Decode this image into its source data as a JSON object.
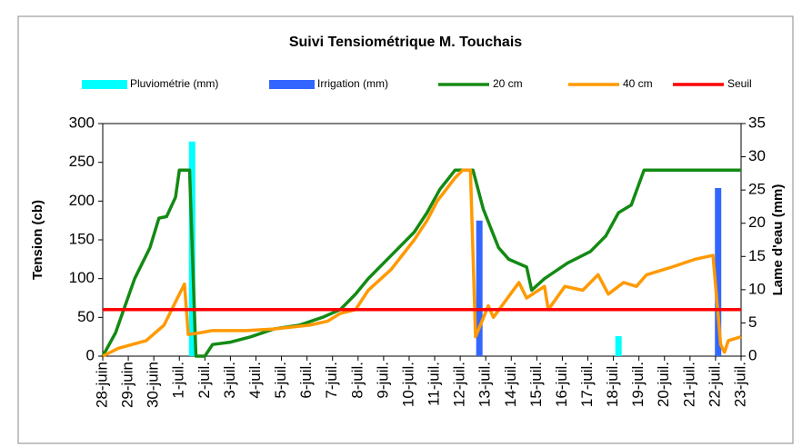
{
  "chart_data": {
    "type": "combo",
    "title": "Suivi Tensiométrique M. Touchais",
    "y_label": "Tension (cb)",
    "y2_label": "Lame d'eau (mm)",
    "xlim": [
      0,
      25
    ],
    "xticks": [
      {
        "value": 0,
        "label": "28-juin"
      },
      {
        "value": 1,
        "label": "29-juin"
      },
      {
        "value": 2,
        "label": "30-juin"
      },
      {
        "value": 3,
        "label": "1-juil."
      },
      {
        "value": 4,
        "label": "2-juil."
      },
      {
        "value": 5,
        "label": "3-juil."
      },
      {
        "value": 6,
        "label": "4-juil."
      },
      {
        "value": 7,
        "label": "5-juil."
      },
      {
        "value": 8,
        "label": "6-juil."
      },
      {
        "value": 9,
        "label": "7-juil."
      },
      {
        "value": 10,
        "label": "8-juil."
      },
      {
        "value": 11,
        "label": "9-juil."
      },
      {
        "value": 12,
        "label": "10-juil."
      },
      {
        "value": 13,
        "label": "11-juil."
      },
      {
        "value": 14,
        "label": "12-juil."
      },
      {
        "value": 15,
        "label": "13-juil."
      },
      {
        "value": 16,
        "label": "14-juil."
      },
      {
        "value": 17,
        "label": "15-juil."
      },
      {
        "value": 18,
        "label": "16-juil."
      },
      {
        "value": 19,
        "label": "17-juil."
      },
      {
        "value": 20,
        "label": "18-juil."
      },
      {
        "value": 21,
        "label": "19-juil."
      },
      {
        "value": 22,
        "label": "20-juil."
      },
      {
        "value": 23,
        "label": "21-juil."
      },
      {
        "value": 24,
        "label": "22-juil."
      },
      {
        "value": 25,
        "label": "23-juil."
      }
    ],
    "ylim": [
      0,
      300
    ],
    "yticks": [
      0,
      50,
      100,
      150,
      200,
      250,
      300
    ],
    "y2lim": [
      0,
      35
    ],
    "y2ticks": [
      0,
      5,
      10,
      15,
      20,
      25,
      30,
      35
    ],
    "series": [
      {
        "name": "Pluviométrie (mm)",
        "type": "bar",
        "axis": "y2",
        "color": "#00ffff",
        "x": [
          3.5,
          20.2
        ],
        "values": [
          32.3,
          3
        ]
      },
      {
        "name": "Irrigation (mm)",
        "type": "bar",
        "axis": "y2",
        "color": "#3366ff",
        "x": [
          14.75,
          24.1
        ],
        "values": [
          20.4,
          25.3
        ]
      },
      {
        "name": "20 cm",
        "type": "line",
        "color": "#138a13",
        "x": [
          0,
          0.5,
          1.25,
          1.85,
          2.2,
          2.5,
          2.85,
          3.0,
          3.4,
          3.65,
          4.0,
          4.3,
          5.0,
          5.8,
          6.7,
          7.7,
          8.6,
          9.3,
          9.9,
          10.4,
          11.3,
          12.2,
          12.7,
          13.2,
          13.8,
          14.5,
          14.9,
          15.5,
          15.9,
          16.6,
          16.8,
          17.3,
          18.2,
          19.1,
          19.7,
          20.2,
          20.7,
          21.2,
          25
        ],
        "values": [
          0,
          30,
          100,
          140,
          178,
          180,
          205,
          240,
          240,
          0,
          0,
          15,
          18,
          25,
          35,
          40,
          50,
          60,
          80,
          100,
          130,
          160,
          185,
          215,
          240,
          240,
          190,
          140,
          125,
          115,
          85,
          100,
          120,
          135,
          155,
          185,
          195,
          240,
          240
        ]
      },
      {
        "name": "40 cm",
        "type": "line",
        "color": "#ff9900",
        "x": [
          0,
          0.6,
          1.7,
          2.4,
          2.85,
          3.2,
          3.35,
          3.8,
          4.3,
          5.6,
          6.7,
          8.1,
          8.8,
          9.3,
          9.9,
          10.4,
          11.3,
          12.2,
          12.7,
          13.1,
          13.8,
          14.1,
          14.4,
          14.6,
          15.1,
          15.3,
          16.3,
          16.6,
          17.3,
          17.45,
          18.1,
          18.8,
          19.4,
          19.8,
          20.4,
          20.9,
          21.3,
          22.3,
          23.2,
          23.9,
          24.2,
          24.35,
          24.5,
          25
        ],
        "values": [
          0,
          10,
          20,
          40,
          70,
          93,
          28,
          30,
          33,
          33,
          35,
          40,
          45,
          55,
          60,
          85,
          112,
          150,
          175,
          200,
          230,
          240,
          240,
          25,
          65,
          50,
          95,
          75,
          90,
          60,
          90,
          85,
          105,
          80,
          95,
          90,
          105,
          115,
          125,
          130,
          15,
          5,
          20,
          25
        ]
      },
      {
        "name": "Seuil",
        "type": "line",
        "color": "#ff0000",
        "x": [
          0,
          25
        ],
        "values": [
          60,
          60
        ]
      }
    ]
  }
}
